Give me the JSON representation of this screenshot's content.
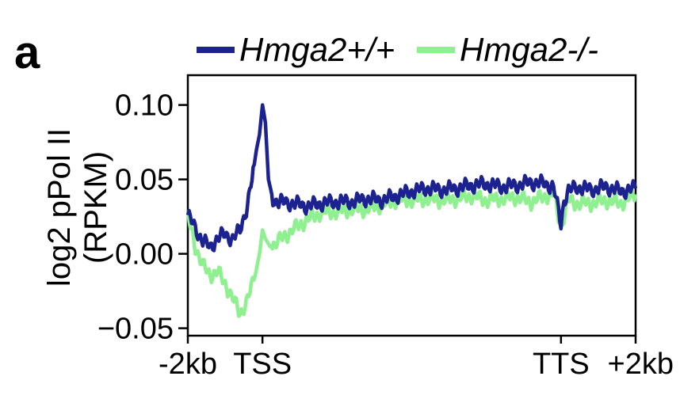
{
  "panel_label": "a",
  "colors": {
    "series_wt": "#1c2390",
    "series_ko": "#8ff08f",
    "axis": "#000000"
  },
  "chart_data": {
    "type": "line",
    "title": "",
    "xlabel": "",
    "ylabel": "log2 pPol II",
    "ylabel_line2": "(RPKM)",
    "xlim": [
      0,
      3
    ],
    "ylim": [
      -0.055,
      0.12
    ],
    "x_ticks": [
      {
        "value": 0,
        "label": "-2kb"
      },
      {
        "value": 0.5,
        "label": "TSS"
      },
      {
        "value": 2.5,
        "label": "TTS"
      },
      {
        "value": 3,
        "label": "+2kb"
      }
    ],
    "y_ticks": [
      {
        "value": 0.1,
        "label": "0.10"
      },
      {
        "value": 0.05,
        "label": "0.05"
      },
      {
        "value": 0.0,
        "label": "0.00"
      },
      {
        "value": -0.05,
        "label": "−0.05"
      }
    ],
    "legend_placement": "top",
    "grid": false,
    "series": [
      {
        "name": "Hmga2+/+",
        "x": [
          0.0,
          0.05,
          0.1,
          0.15,
          0.2,
          0.25,
          0.3,
          0.35,
          0.4,
          0.43,
          0.46,
          0.48,
          0.5,
          0.52,
          0.54,
          0.57,
          0.6,
          0.7,
          0.8,
          0.9,
          1.0,
          1.1,
          1.2,
          1.3,
          1.4,
          1.5,
          1.6,
          1.7,
          1.8,
          1.9,
          2.0,
          2.1,
          2.2,
          2.3,
          2.4,
          2.45,
          2.5,
          2.52,
          2.55,
          2.6,
          2.7,
          2.8,
          2.9,
          3.0
        ],
        "values": [
          0.026,
          0.017,
          0.009,
          0.004,
          0.011,
          0.013,
          0.01,
          0.016,
          0.033,
          0.05,
          0.07,
          0.08,
          0.1,
          0.088,
          0.05,
          0.037,
          0.035,
          0.034,
          0.032,
          0.034,
          0.035,
          0.035,
          0.037,
          0.036,
          0.039,
          0.042,
          0.044,
          0.043,
          0.044,
          0.046,
          0.047,
          0.045,
          0.046,
          0.048,
          0.047,
          0.045,
          0.02,
          0.036,
          0.042,
          0.045,
          0.043,
          0.045,
          0.042,
          0.044
        ]
      },
      {
        "name": "Hmga2-/-",
        "x": [
          0.0,
          0.05,
          0.1,
          0.15,
          0.2,
          0.25,
          0.3,
          0.35,
          0.4,
          0.45,
          0.48,
          0.5,
          0.52,
          0.55,
          0.6,
          0.7,
          0.8,
          0.9,
          1.0,
          1.1,
          1.2,
          1.3,
          1.4,
          1.5,
          1.6,
          1.7,
          1.8,
          1.9,
          2.0,
          2.1,
          2.2,
          2.3,
          2.4,
          2.45,
          2.5,
          2.52,
          2.55,
          2.6,
          2.7,
          2.8,
          2.9,
          3.0
        ],
        "values": [
          0.025,
          0.005,
          -0.008,
          -0.014,
          -0.012,
          -0.02,
          -0.03,
          -0.04,
          -0.031,
          -0.015,
          0.0,
          0.016,
          0.01,
          0.005,
          0.008,
          0.016,
          0.023,
          0.028,
          0.028,
          0.03,
          0.03,
          0.033,
          0.036,
          0.036,
          0.037,
          0.036,
          0.037,
          0.039,
          0.036,
          0.037,
          0.038,
          0.035,
          0.039,
          0.04,
          0.018,
          0.025,
          0.036,
          0.034,
          0.034,
          0.036,
          0.034,
          0.04
        ]
      }
    ]
  }
}
